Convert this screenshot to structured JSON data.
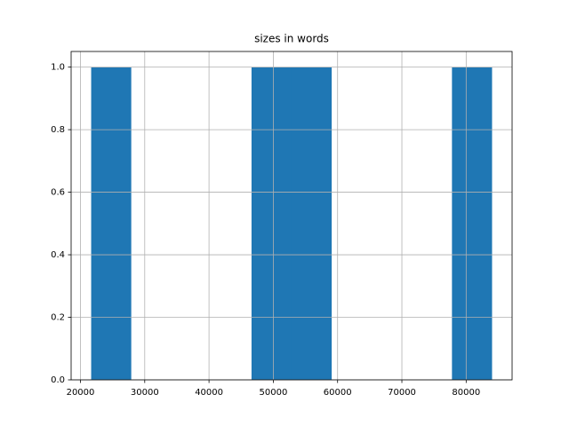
{
  "chart_data": {
    "type": "histogram",
    "title": "sizes in words",
    "bins": [
      21667,
      27903,
      34139,
      40375,
      46611,
      52847,
      59083,
      65319,
      71556,
      77792,
      84028
    ],
    "values": [
      1,
      0,
      0,
      0,
      1,
      1,
      0,
      0,
      0,
      1
    ],
    "color": "#1f77b4",
    "xlim": [
      18549,
      87146
    ],
    "xticks": [
      20000,
      30000,
      40000,
      50000,
      60000,
      70000,
      80000
    ],
    "ylim": [
      0,
      1.05
    ],
    "yticks": [
      {
        "value": 0,
        "label": "0.0"
      },
      {
        "value": 0.2,
        "label": "0.2"
      },
      {
        "value": 0.4,
        "label": "0.4"
      },
      {
        "value": 0.6,
        "label": "0.6"
      },
      {
        "value": 0.8,
        "label": "0.8"
      },
      {
        "value": 1,
        "label": "1.0"
      }
    ],
    "grid": true
  }
}
